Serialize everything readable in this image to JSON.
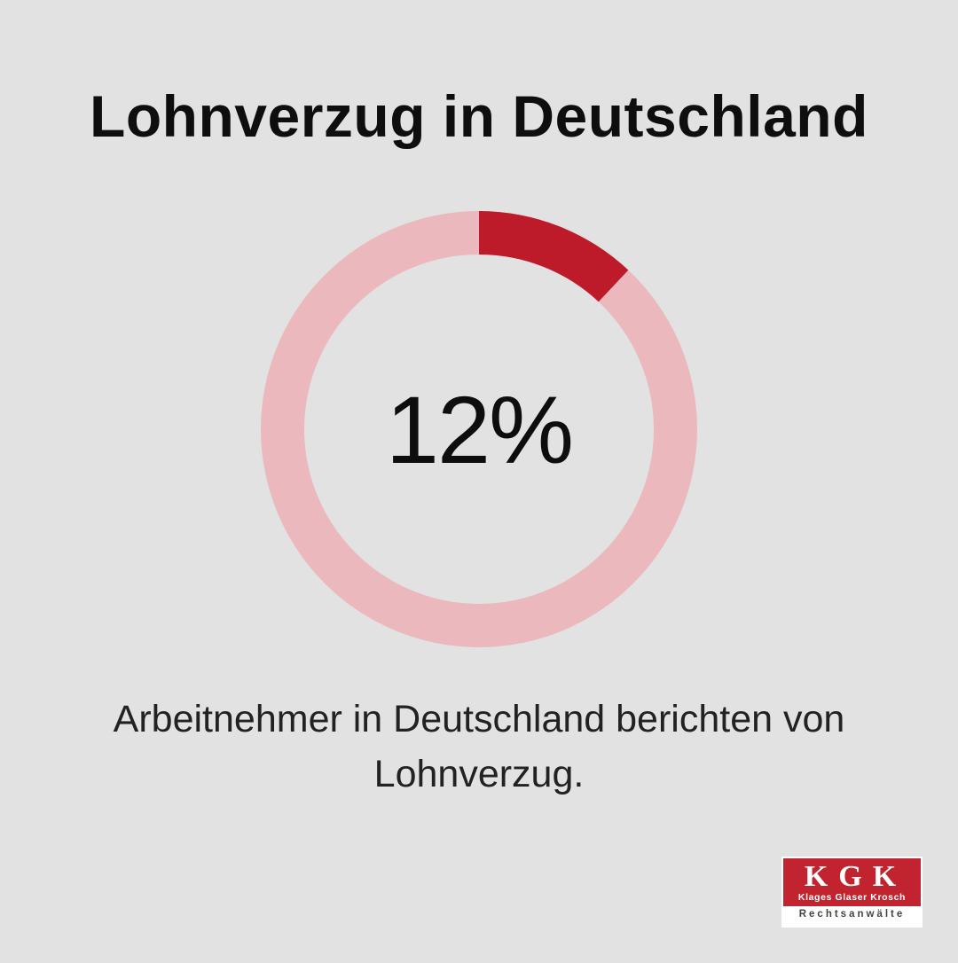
{
  "title": "Lohnverzug in Deutschland",
  "chart_data": {
    "type": "donut",
    "value": 12,
    "unit": "%",
    "label": "12%",
    "series": [
      {
        "value": 12,
        "color": "#bd1a2a"
      },
      {
        "value": 88,
        "color": "#ebb9bd"
      }
    ]
  },
  "description": {
    "line1": "Arbeitnehmer in Deutschland berichten von",
    "line2": "Lohnverzug."
  },
  "logo": {
    "letters": "KGK",
    "names": "Klages Glaser Krosch",
    "subtitle": "Rechtsanwälte",
    "color": "#c1242e"
  },
  "colors": {
    "background": "#e2e2e2",
    "accent": "#bd1a2a",
    "remainder": "#ebb9bd"
  }
}
